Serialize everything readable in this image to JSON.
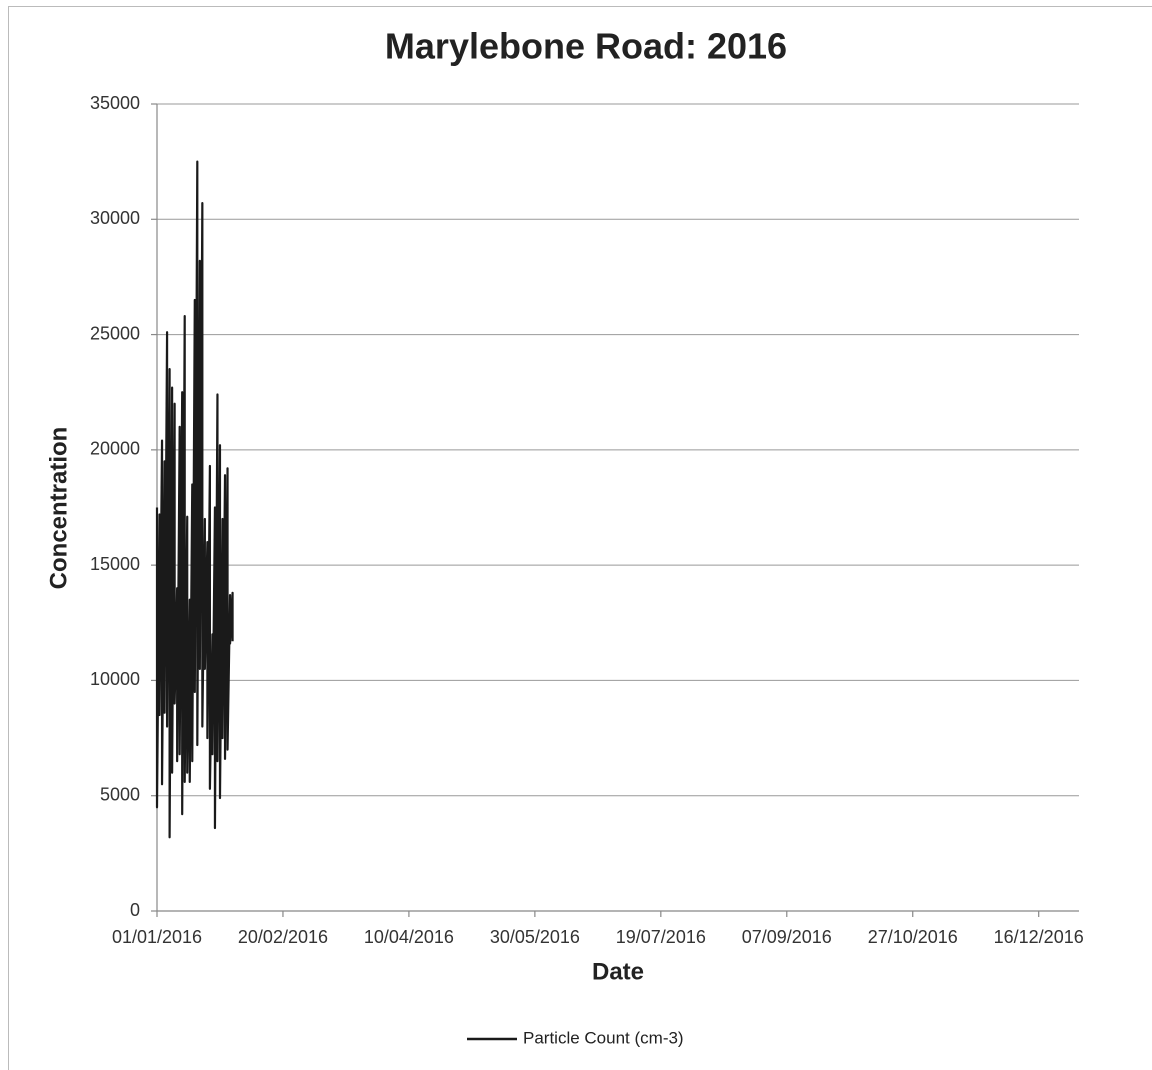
{
  "chart_data": {
    "type": "line",
    "title": "Marylebone Road: 2016",
    "x_label": "Date",
    "y_label": "Concentration",
    "x": [
      "01/01/2016",
      "01/01/2016",
      "02/01/2016",
      "02/01/2016",
      "03/01/2016",
      "03/01/2016",
      "04/01/2016",
      "04/01/2016",
      "05/01/2016",
      "05/01/2016",
      "06/01/2016",
      "06/01/2016",
      "07/01/2016",
      "07/01/2016",
      "08/01/2016",
      "08/01/2016",
      "09/01/2016",
      "09/01/2016",
      "10/01/2016",
      "10/01/2016",
      "11/01/2016",
      "11/01/2016",
      "12/01/2016",
      "12/01/2016",
      "13/01/2016",
      "13/01/2016",
      "14/01/2016",
      "14/01/2016",
      "15/01/2016",
      "15/01/2016",
      "16/01/2016",
      "16/01/2016",
      "17/01/2016",
      "17/01/2016",
      "18/01/2016",
      "18/01/2016",
      "19/01/2016",
      "19/01/2016",
      "20/01/2016",
      "20/01/2016",
      "21/01/2016",
      "21/01/2016",
      "22/01/2016",
      "22/01/2016",
      "23/01/2016",
      "23/01/2016",
      "24/01/2016",
      "24/01/2016",
      "25/01/2016",
      "25/01/2016",
      "26/01/2016",
      "26/01/2016",
      "27/01/2016",
      "27/01/2016",
      "28/01/2016",
      "28/01/2016",
      "29/01/2016",
      "29/01/2016",
      "30/01/2016",
      "30/01/2016",
      "31/01/2016",
      "31/01/2016"
    ],
    "series": [
      {
        "name": "Particle Count (cm-3)",
        "color": "#1a1a1a",
        "values": [
          17500,
          4500,
          17200,
          8500,
          20400,
          5500,
          19500,
          8600,
          25100,
          8000,
          23500,
          3200,
          22700,
          6000,
          22000,
          9000,
          14000,
          6500,
          21000,
          6800,
          22500,
          4200,
          25800,
          5600,
          17100,
          6000,
          13500,
          5600,
          18500,
          6500,
          26500,
          9500,
          32500,
          7200,
          28200,
          10500,
          30700,
          8000,
          17000,
          10500,
          16000,
          7500,
          19300,
          5300,
          12000,
          6800,
          17500,
          3600,
          22400,
          6500,
          20200,
          4900,
          17000,
          7500,
          18900,
          6600,
          19200,
          7000,
          13700,
          11600,
          13800,
          11700
        ]
      }
    ],
    "xlim": [
      "01/01/2016",
      "01/01/2017"
    ],
    "xticks": [
      "01/01/2016",
      "20/02/2016",
      "10/04/2016",
      "30/05/2016",
      "19/07/2016",
      "07/09/2016",
      "27/10/2016",
      "16/12/2016"
    ],
    "ylim": [
      0,
      35000
    ],
    "yticks": [
      0,
      5000,
      10000,
      15000,
      20000,
      25000,
      30000,
      35000
    ],
    "grid": true,
    "legend": "bottom"
  }
}
